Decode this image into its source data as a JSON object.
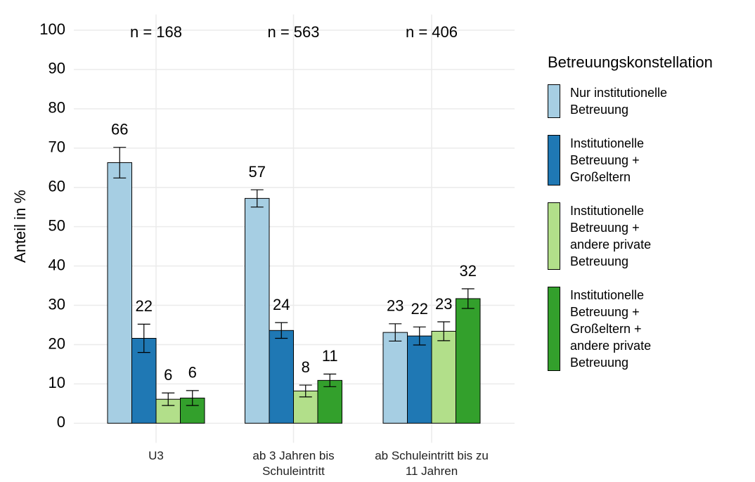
{
  "chart_data": {
    "type": "bar",
    "ylabel": "Anteil in %",
    "legend_title": "Betreuungskonstellation",
    "categories": [
      "U3",
      "ab 3 Jahren bis Schuleintritt",
      "ab Schuleintritt bis zu 11 Jahren"
    ],
    "annotations": [
      "n = 168",
      "n = 563",
      "n = 406"
    ],
    "series": [
      {
        "name": "Nur institutionelle Betreuung",
        "color": "#a6cee3",
        "values": [
          66.3,
          57.2,
          23.1
        ],
        "errors": [
          3.9,
          2.2,
          2.2
        ],
        "value_labels": [
          "66",
          "57",
          "23"
        ]
      },
      {
        "name": "Institutionelle Betreuung + Großeltern",
        "color": "#1f78b4",
        "values": [
          21.6,
          23.6,
          22.2
        ],
        "errors": [
          3.6,
          2.0,
          2.3
        ],
        "value_labels": [
          "22",
          "24",
          "22"
        ]
      },
      {
        "name": "Institutionelle Betreuung + andere private Betreuung",
        "color": "#b2df8a",
        "values": [
          6.1,
          8.2,
          23.4
        ],
        "errors": [
          1.6,
          1.5,
          2.4
        ],
        "value_labels": [
          "6",
          "8",
          "23"
        ]
      },
      {
        "name": "Institutionelle Betreuung + Großeltern + andere private Betreuung",
        "color": "#33a02c",
        "values": [
          6.4,
          10.9,
          31.7
        ],
        "errors": [
          1.9,
          1.6,
          2.5
        ],
        "value_labels": [
          "6",
          "11",
          "32"
        ]
      }
    ],
    "ylim": [
      -5,
      104
    ],
    "yticks": [
      0,
      10,
      20,
      30,
      40,
      50,
      60,
      70,
      80,
      90,
      100
    ],
    "grid": true
  }
}
